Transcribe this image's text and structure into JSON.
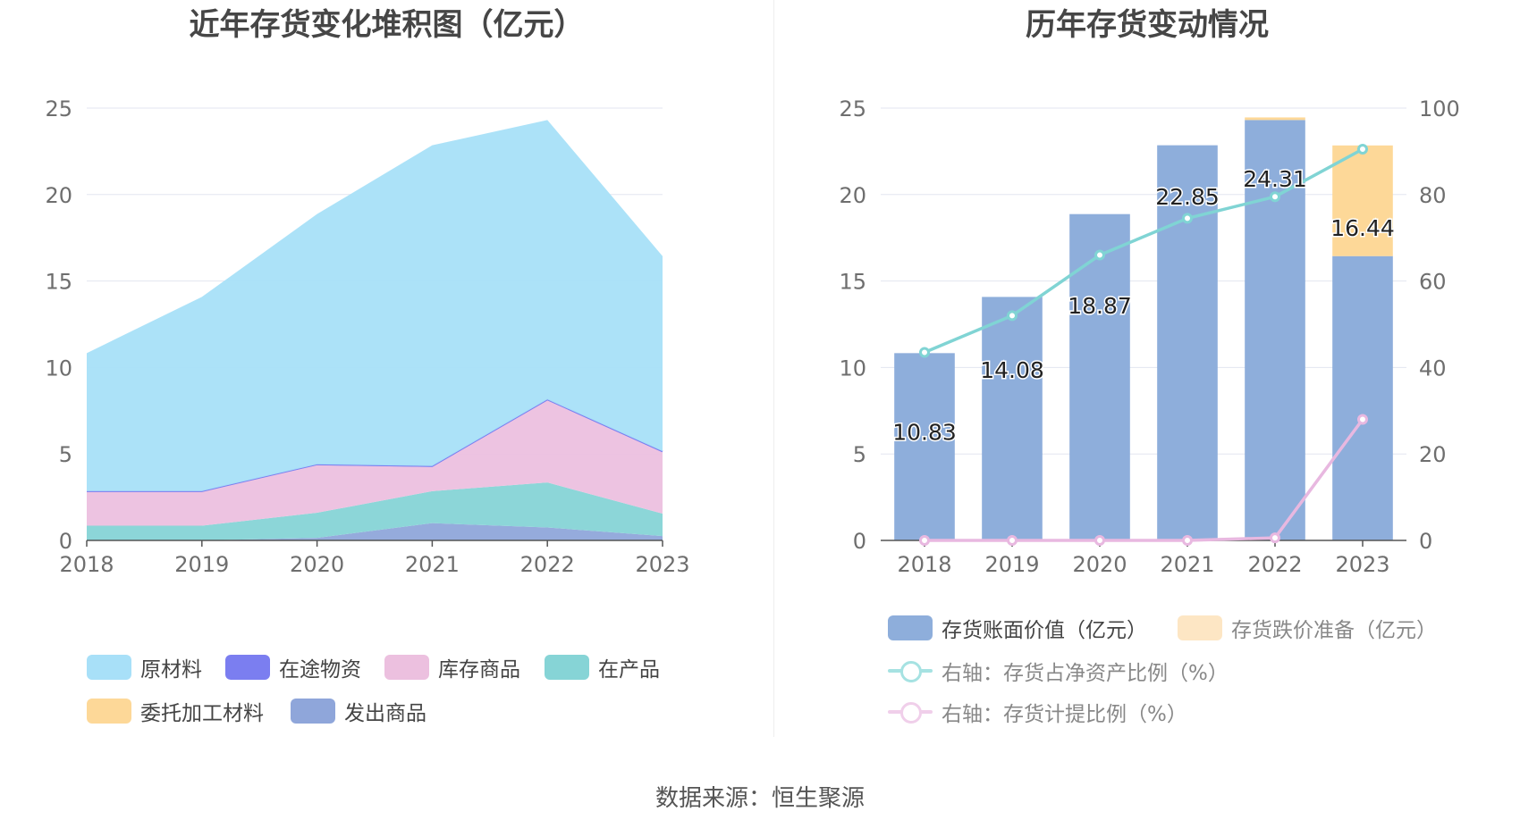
{
  "left_title": "近年存货变化堆积图（亿元）",
  "right_title": "历年存货变动情况",
  "source": "数据来源：恒生聚源",
  "colors": {
    "原材料": "#a8e0f8",
    "在途物资": "#7b7ef0",
    "库存商品": "#ecc0df",
    "在产品": "#86d4d6",
    "委托加工材料": "#fdd898",
    "发出商品": "#8fa6da",
    "bar_main": "#8eaedb",
    "bar_reserve": "#fdd898",
    "line_ratio": "#80d4d4",
    "line_provision": "#e8b8e0"
  },
  "chart_data": [
    {
      "type": "area",
      "stacked": true,
      "title": "近年存货变化堆积图（亿元）",
      "categories": [
        "2018",
        "2019",
        "2020",
        "2021",
        "2022",
        "2023"
      ],
      "ylim": [
        0,
        25
      ],
      "yticks": [
        0,
        5,
        10,
        15,
        20,
        25
      ],
      "grid": true,
      "legend_position": "bottom",
      "series": [
        {
          "name": "发出商品",
          "values": [
            0,
            0,
            0.15,
            1.0,
            0.75,
            0.25
          ]
        },
        {
          "name": "委托加工材料",
          "values": [
            0,
            0,
            0,
            0,
            0,
            0
          ]
        },
        {
          "name": "在产品",
          "values": [
            0.85,
            0.85,
            1.45,
            1.85,
            2.6,
            1.3
          ]
        },
        {
          "name": "库存商品",
          "values": [
            2.0,
            2.0,
            2.75,
            1.4,
            4.75,
            3.55
          ]
        },
        {
          "name": "在途物资",
          "values": [
            0,
            0,
            0.05,
            0.05,
            0.05,
            0.05
          ]
        },
        {
          "name": "原材料",
          "values": [
            7.98,
            11.23,
            14.47,
            18.55,
            16.16,
            11.29
          ]
        }
      ],
      "legend": [
        "原材料",
        "在途物资",
        "库存商品",
        "在产品",
        "委托加工材料",
        "发出商品"
      ]
    },
    {
      "type": "bar",
      "title": "历年存货变动情况",
      "categories": [
        "2018",
        "2019",
        "2020",
        "2021",
        "2022",
        "2023"
      ],
      "ylim": [
        0,
        25
      ],
      "yticks": [
        0,
        5,
        10,
        15,
        20,
        25
      ],
      "y2lim": [
        0,
        100
      ],
      "y2ticks": [
        0,
        20,
        40,
        60,
        80,
        100
      ],
      "grid": true,
      "legend_position": "bottom",
      "series": [
        {
          "name": "存货账面价值（亿元）",
          "values": [
            10.83,
            14.08,
            18.87,
            22.85,
            24.31,
            16.44
          ],
          "labels": [
            "10.83",
            "14.08",
            "18.87",
            "22.85",
            "24.31",
            "16.44"
          ]
        },
        {
          "name": "存货跌价准备（亿元）",
          "values": [
            0,
            0,
            0,
            0,
            0.15,
            6.4
          ]
        },
        {
          "name": "右轴：存货占净资产比例（%）",
          "axis": "right",
          "values": [
            43.5,
            52.0,
            66.0,
            74.5,
            79.5,
            90.5
          ]
        },
        {
          "name": "右轴：存货计提比例（%）",
          "axis": "right",
          "values": [
            0,
            0,
            0,
            0,
            0.6,
            28.0
          ]
        }
      ]
    }
  ]
}
